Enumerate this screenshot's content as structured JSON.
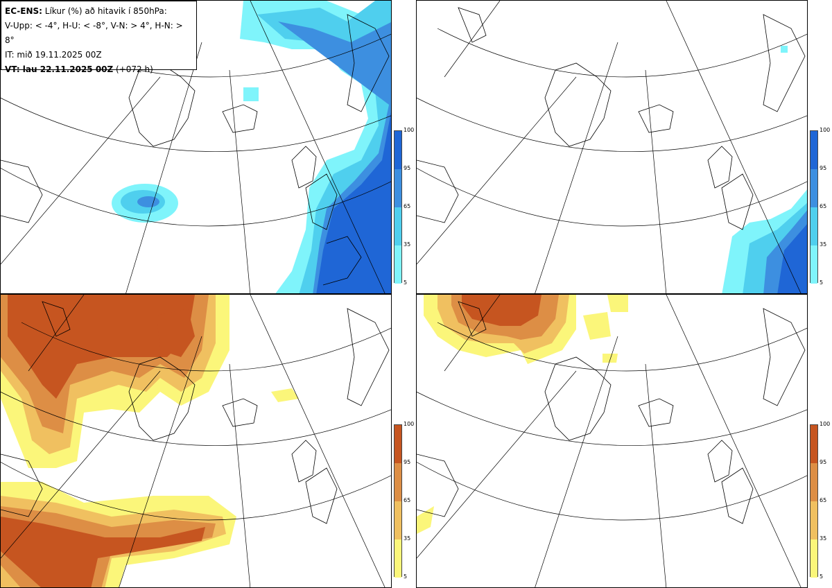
{
  "info": {
    "model": "EC-ENS:",
    "title": "Líkur (%) að hitavik í 850hPa:",
    "criteria": "V-Upp: < -4°, H-U: < -8°, V-N: > 4°, H-N: > 8°",
    "init_time": "IT: mið 19.11.2025 00Z",
    "valid_prefix": "VT: lau 22.11.2025 00Z",
    "lead_time": "(+072 h)"
  },
  "legend_ticks": [
    "100",
    "95",
    "65",
    "35",
    "5"
  ],
  "colors": {
    "cold_light": "#7ff4fb",
    "cold_mid": "#4fcfee",
    "cold_dark2": "#3d8fe0",
    "cold_dark": "#1f66d6",
    "warm_light": "#fbf67a",
    "warm_mid": "#f0c060",
    "warm_dark2": "#dd8e45",
    "warm_dark": "#c65520"
  }
}
